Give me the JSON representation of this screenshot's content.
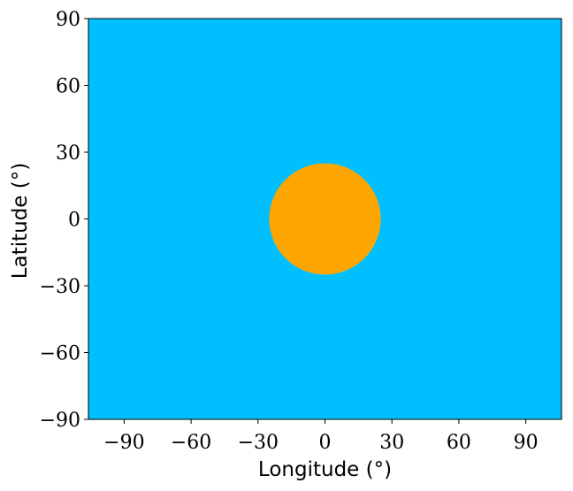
{
  "chart_data": {
    "type": "heatmap",
    "title": "",
    "xlabel": "Longitude (°)",
    "ylabel": "Latitude (°)",
    "xlim": [
      -106,
      106
    ],
    "ylim": [
      -90,
      90
    ],
    "xticks": [
      -90,
      -60,
      -30,
      0,
      30,
      60,
      90
    ],
    "yticks": [
      90,
      60,
      30,
      0,
      -30,
      -60,
      -90
    ],
    "xtick_labels": [
      "−90",
      "−60",
      "−30",
      "0",
      "30",
      "60",
      "90"
    ],
    "ytick_labels": [
      "90",
      "60",
      "30",
      "0",
      "−30",
      "−60",
      "−90"
    ],
    "background": {
      "color": "#00bfff"
    },
    "regions": [
      {
        "shape": "circle",
        "center_lon": 0,
        "center_lat": 0,
        "radius_deg": 25,
        "color": "#ffa500"
      }
    ],
    "grid": false,
    "legend": "none"
  }
}
